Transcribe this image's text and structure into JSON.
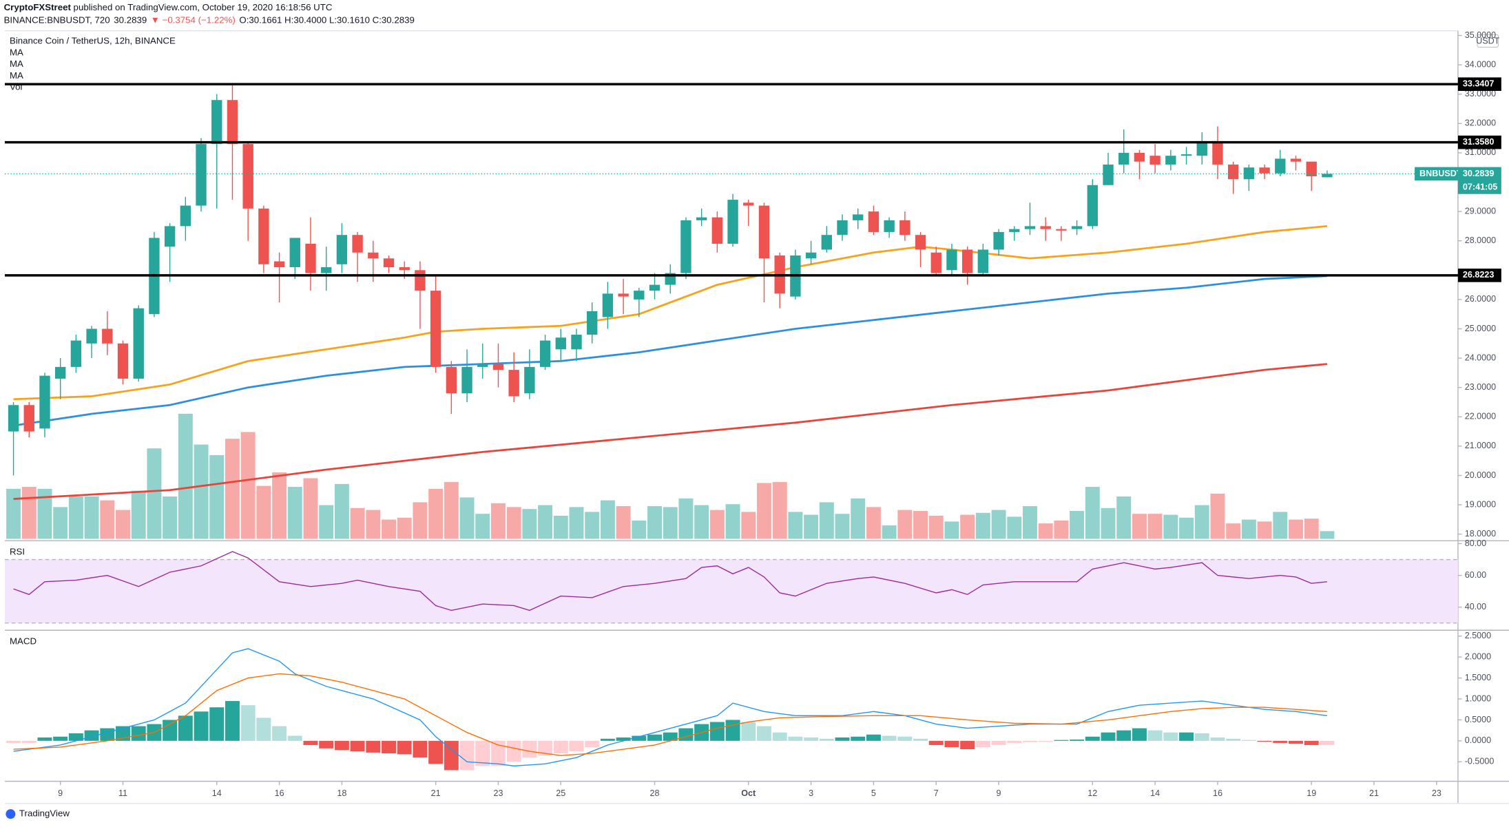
{
  "header": {
    "publisher": "CryptoFXStreet",
    "published": " published on TradingView.com, October 19, 2020 16:18:56 UTC",
    "symbol": "BINANCE:BNBUSDT, 720",
    "price": "30.2839",
    "change": "▼ −0.3754 (−1.22%)",
    "ohlc": "O:30.1661 H:30.4000 L:30.1610 C:30.2839"
  },
  "footer": "TradingView",
  "chart_data": [
    {
      "type": "candlestick",
      "title": "Binance Coin / TetherUS, 12h, BINANCE",
      "indicators": [
        "MA",
        "MA",
        "MA",
        "Vol"
      ],
      "currency": "USDT",
      "colors": {
        "up": "#26a69a",
        "down": "#ef5350"
      },
      "open": [
        21.5,
        22.4,
        21.6,
        23.3,
        23.7,
        24.5,
        25.0,
        24.5,
        23.3,
        25.5,
        27.8,
        28.5,
        29.2,
        31.3,
        32.8,
        31.3,
        29.1,
        27.3,
        27.1,
        27.9,
        26.9,
        27.2,
        28.2,
        27.6,
        27.4,
        27.1,
        27.0,
        26.3,
        23.7,
        22.8,
        23.7,
        23.8,
        23.6,
        22.8,
        23.7,
        24.3,
        24.3,
        24.8,
        25.4,
        26.2,
        26.0,
        26.3,
        26.5,
        26.9,
        28.7,
        28.8,
        27.9,
        29.3,
        29.2,
        27.5,
        26.1,
        27.4,
        27.7,
        28.2,
        28.7,
        29.0,
        28.3,
        28.7,
        28.2,
        27.6,
        27.0,
        27.7,
        26.9,
        27.7,
        28.3,
        28.4,
        28.5,
        28.4,
        28.4,
        28.5,
        29.9,
        30.6,
        31.0,
        30.9,
        30.6,
        30.9,
        30.9,
        31.4,
        30.6,
        30.1,
        30.5,
        30.3,
        30.8,
        30.7,
        30.1661
      ],
      "high": [
        22.5,
        22.5,
        23.5,
        24.0,
        24.8,
        25.1,
        25.6,
        24.6,
        25.8,
        28.3,
        28.6,
        29.5,
        31.5,
        33.0,
        33.3,
        31.4,
        29.2,
        27.6,
        28.1,
        28.8,
        27.8,
        28.6,
        28.3,
        28.0,
        27.5,
        27.3,
        27.3,
        26.8,
        23.9,
        24.3,
        24.5,
        24.5,
        24.2,
        24.3,
        24.8,
        25.0,
        25.0,
        25.9,
        26.6,
        26.7,
        26.4,
        26.9,
        27.2,
        28.8,
        29.1,
        29.0,
        29.6,
        29.4,
        29.3,
        27.6,
        27.7,
        28.0,
        28.5,
        28.9,
        29.1,
        29.2,
        28.8,
        29.0,
        28.3,
        27.8,
        27.9,
        27.8,
        27.9,
        28.4,
        28.5,
        29.3,
        28.8,
        28.5,
        28.7,
        30.1,
        31.0,
        31.8,
        31.1,
        31.3,
        31.1,
        31.2,
        31.7,
        31.9,
        30.7,
        30.6,
        30.6,
        31.1,
        30.9,
        30.7,
        30.4
      ],
      "low": [
        20.0,
        21.3,
        21.3,
        22.6,
        23.5,
        24.0,
        24.1,
        23.1,
        23.2,
        25.4,
        26.6,
        28.0,
        29.0,
        29.1,
        29.4,
        28.0,
        26.9,
        25.9,
        26.7,
        26.3,
        26.3,
        26.9,
        26.6,
        26.6,
        26.9,
        26.7,
        25.0,
        23.5,
        22.1,
        22.5,
        23.3,
        23.0,
        22.5,
        22.6,
        23.6,
        23.9,
        23.9,
        24.5,
        25.0,
        25.5,
        25.4,
        26.0,
        26.2,
        26.7,
        28.5,
        27.6,
        27.8,
        28.5,
        25.9,
        25.7,
        26.0,
        27.2,
        27.6,
        28.0,
        28.4,
        28.2,
        28.1,
        28.0,
        27.1,
        26.8,
        26.8,
        26.5,
        26.8,
        27.5,
        28.0,
        28.2,
        28.0,
        28.0,
        28.2,
        28.4,
        29.9,
        30.3,
        30.1,
        30.3,
        30.4,
        30.6,
        30.6,
        30.1,
        29.6,
        29.7,
        30.1,
        30.2,
        30.4,
        29.7,
        30.161
      ],
      "close": [
        22.4,
        21.5,
        23.4,
        23.7,
        24.6,
        25.0,
        24.5,
        23.3,
        25.7,
        28.1,
        28.5,
        29.2,
        31.3,
        32.8,
        31.3,
        29.1,
        27.2,
        27.1,
        28.1,
        26.9,
        27.1,
        28.2,
        27.6,
        27.4,
        27.1,
        27.0,
        26.3,
        23.7,
        22.8,
        23.7,
        23.8,
        23.6,
        22.7,
        23.7,
        24.6,
        24.7,
        24.8,
        25.6,
        26.2,
        26.1,
        26.3,
        26.5,
        26.9,
        28.7,
        28.8,
        27.9,
        29.4,
        29.2,
        27.4,
        26.2,
        27.5,
        27.6,
        28.2,
        28.7,
        28.9,
        28.3,
        28.7,
        28.2,
        27.7,
        26.9,
        27.7,
        26.9,
        27.7,
        28.3,
        28.4,
        28.5,
        28.4,
        28.35,
        28.5,
        29.9,
        30.6,
        31.0,
        30.7,
        30.6,
        30.9,
        30.95,
        31.4,
        30.6,
        30.1,
        30.5,
        30.3,
        30.8,
        30.7,
        30.2,
        30.2839
      ],
      "volume": [
        52,
        54,
        52,
        33,
        44,
        44,
        40,
        30,
        50,
        94,
        44,
        130,
        98,
        87,
        104,
        111,
        55,
        69,
        54,
        63,
        35,
        57,
        32,
        30,
        20,
        22,
        38,
        52,
        59,
        43,
        26,
        37,
        33,
        31,
        35,
        24,
        33,
        28,
        40,
        34,
        19,
        34,
        33,
        42,
        35,
        30,
        36,
        28,
        58,
        59,
        28,
        25,
        38,
        26,
        42,
        33,
        14,
        30,
        29,
        24,
        18,
        25,
        27,
        30,
        23,
        34,
        16,
        19,
        29,
        54,
        32,
        44,
        26,
        26,
        25,
        22,
        35,
        47,
        16,
        20,
        18,
        28,
        20,
        21,
        8
      ],
      "moving_averages": [
        {
          "color": "#f7a21b",
          "x": [
            0,
            5,
            10,
            15,
            20,
            25,
            27,
            30,
            35,
            40,
            45,
            50,
            55,
            58,
            60,
            65,
            70,
            75,
            80,
            84
          ],
          "values": [
            22.6,
            22.7,
            23.1,
            23.9,
            24.3,
            24.7,
            24.9,
            25.0,
            25.1,
            25.5,
            26.5,
            27.1,
            27.6,
            27.8,
            27.7,
            27.4,
            27.6,
            27.9,
            28.3,
            28.5
          ]
        },
        {
          "color": "#2d8fe0",
          "x": [
            0,
            5,
            10,
            15,
            20,
            25,
            30,
            35,
            40,
            45,
            50,
            55,
            60,
            65,
            70,
            75,
            80,
            84
          ],
          "values": [
            21.7,
            22.1,
            22.4,
            23.0,
            23.4,
            23.7,
            23.8,
            23.9,
            24.2,
            24.6,
            25.0,
            25.3,
            25.6,
            25.9,
            26.2,
            26.4,
            26.7,
            26.8
          ]
        },
        {
          "color": "#e8443a",
          "x": [
            0,
            10,
            20,
            30,
            40,
            50,
            60,
            70,
            80,
            84
          ],
          "values": [
            19.2,
            19.5,
            20.2,
            20.8,
            21.3,
            21.8,
            22.4,
            22.9,
            23.6,
            23.8
          ]
        }
      ],
      "levels": [
        33.3407,
        {
          "value": 31.358,
          "label": "31.3580"
        },
        26.8223
      ],
      "last_price": 30.2839,
      "last_price_name": "BNBUSDT",
      "countdown": "07:41:05",
      "ylim": [
        17.84,
        35.16
      ],
      "yticks": [
        {
          "value": 35,
          "label": "35.0000"
        },
        {
          "value": 34,
          "label": "34.0000"
        },
        {
          "value": 33,
          "label": "33.0000"
        },
        {
          "value": 32,
          "label": "32.0000"
        },
        {
          "value": 31,
          "label": "31.0000"
        },
        {
          "value": 29,
          "label": "29.0000"
        },
        {
          "value": 28,
          "label": "28.0000"
        },
        {
          "value": 26,
          "label": "26.0000"
        },
        {
          "value": 25,
          "label": "25.0000"
        },
        {
          "value": 24,
          "label": "24.0000"
        },
        {
          "value": 23,
          "label": "23.0000"
        },
        {
          "value": 22,
          "label": "22.0000"
        },
        {
          "value": 21,
          "label": "21.0000"
        },
        {
          "value": 20,
          "label": "20.0000"
        },
        {
          "value": 19,
          "label": "19.0000"
        },
        {
          "value": 18,
          "label": "18.0000"
        }
      ],
      "xticks": [
        {
          "value": 3,
          "label": "9"
        },
        {
          "value": 7,
          "label": "11"
        },
        {
          "value": 13,
          "label": "14"
        },
        {
          "value": 17,
          "label": "16"
        },
        {
          "value": 21,
          "label": "18"
        },
        {
          "value": 27,
          "label": "21"
        },
        {
          "value": 31,
          "label": "23"
        },
        {
          "value": 35,
          "label": "25"
        },
        {
          "value": 41,
          "label": "28"
        },
        {
          "value": 47,
          "label": "Oct"
        },
        {
          "value": 51,
          "label": "3"
        },
        {
          "value": 55,
          "label": "5"
        },
        {
          "value": 59,
          "label": "7"
        },
        {
          "value": 63,
          "label": "9"
        },
        {
          "value": 69,
          "label": "12"
        },
        {
          "value": 73,
          "label": "14"
        },
        {
          "value": 77,
          "label": "16"
        },
        {
          "value": 83,
          "label": "19"
        },
        {
          "value": 87,
          "label": "21"
        },
        {
          "value": 91,
          "label": "23"
        }
      ]
    },
    {
      "type": "line",
      "title": "RSI",
      "color": "#9b2a9b",
      "band": [
        30,
        70
      ],
      "band_color": "#f3e5fb",
      "x": [
        0,
        1,
        2,
        4,
        6,
        8,
        10,
        12,
        14,
        15,
        17,
        19,
        21,
        22,
        24,
        26,
        27,
        28,
        30,
        32,
        33,
        35,
        37,
        39,
        41,
        43,
        44,
        45,
        46,
        47,
        48,
        49,
        50,
        52,
        54,
        55,
        57,
        59,
        60,
        61,
        62,
        64,
        66,
        68,
        69,
        71,
        73,
        74,
        76,
        77,
        79,
        81,
        82,
        83,
        84
      ],
      "values": [
        51.5,
        48,
        56,
        57,
        60,
        53,
        62,
        66,
        75,
        71,
        56,
        53,
        55,
        57,
        53,
        50,
        41,
        38,
        42,
        41,
        38,
        47,
        46,
        53,
        55,
        58,
        65,
        66,
        61,
        65,
        59,
        49,
        47,
        55,
        58,
        59,
        55,
        49,
        51,
        48,
        54,
        56,
        56,
        56,
        64,
        68,
        64,
        65,
        68,
        60,
        58,
        60,
        59,
        55,
        56
      ],
      "ylim": [
        26.7,
        81.2
      ],
      "yticks": [
        {
          "value": 80,
          "label": "80.00"
        },
        {
          "value": 60,
          "label": "60.00"
        },
        {
          "value": 40,
          "label": "40.00"
        }
      ]
    },
    {
      "type": "macd",
      "title": "MACD",
      "histogram_colors": [
        "#26a69a",
        "#b2dfdb",
        "#ffcdd2",
        "#ef5350"
      ],
      "histogram": [
        -0.05,
        -0.05,
        0.08,
        0.1,
        0.18,
        0.25,
        0.3,
        0.35,
        0.35,
        0.4,
        0.5,
        0.6,
        0.7,
        0.8,
        0.95,
        0.85,
        0.55,
        0.35,
        0.12,
        -0.1,
        -0.18,
        -0.22,
        -0.25,
        -0.28,
        -0.3,
        -0.32,
        -0.4,
        -0.55,
        -0.7,
        -0.7,
        -0.6,
        -0.6,
        -0.5,
        -0.4,
        -0.35,
        -0.3,
        -0.25,
        -0.15,
        0.05,
        0.08,
        0.12,
        0.15,
        0.2,
        0.3,
        0.4,
        0.45,
        0.5,
        0.45,
        0.35,
        0.2,
        0.1,
        0.08,
        0.05,
        0.08,
        0.1,
        0.15,
        0.12,
        0.1,
        0.05,
        -0.1,
        -0.15,
        -0.2,
        -0.15,
        -0.1,
        -0.05,
        -0.03,
        -0.02,
        0.02,
        0.03,
        0.1,
        0.2,
        0.25,
        0.3,
        0.25,
        0.2,
        0.2,
        0.18,
        0.08,
        0.05,
        0.02,
        -0.02,
        -0.05,
        -0.07,
        -0.1,
        -0.1
      ],
      "series": [
        {
          "color": "#2196f3",
          "x": [
            0,
            3,
            6,
            9,
            11,
            13,
            14,
            15,
            17,
            18,
            20,
            23,
            26,
            27,
            29,
            31,
            32,
            34,
            36,
            38,
            40,
            43,
            45,
            46,
            48,
            50,
            53,
            55,
            57,
            59,
            61,
            63,
            65,
            68,
            70,
            72,
            74,
            76,
            78,
            80,
            82,
            84
          ],
          "values": [
            -0.25,
            -0.1,
            0.2,
            0.5,
            0.9,
            1.7,
            2.1,
            2.2,
            1.9,
            1.6,
            1.3,
            1.0,
            0.5,
            0.1,
            -0.5,
            -0.55,
            -0.6,
            -0.55,
            -0.4,
            -0.1,
            0.1,
            0.4,
            0.6,
            0.9,
            0.7,
            0.6,
            0.6,
            0.7,
            0.6,
            0.4,
            0.3,
            0.35,
            0.4,
            0.4,
            0.7,
            0.85,
            0.9,
            0.95,
            0.85,
            0.75,
            0.7,
            0.6
          ]
        },
        {
          "color": "#ff6d00",
          "x": [
            0,
            3,
            6,
            9,
            11,
            13,
            15,
            17,
            19,
            21,
            23,
            25,
            27,
            29,
            31,
            33,
            35,
            37,
            39,
            41,
            43,
            45,
            47,
            49,
            52,
            55,
            58,
            61,
            64,
            67,
            70,
            72,
            74,
            76,
            78,
            80,
            82,
            84
          ],
          "values": [
            -0.2,
            -0.15,
            0.0,
            0.2,
            0.6,
            1.2,
            1.5,
            1.6,
            1.55,
            1.4,
            1.2,
            1.0,
            0.6,
            0.2,
            -0.1,
            -0.25,
            -0.35,
            -0.3,
            -0.2,
            -0.1,
            0.1,
            0.3,
            0.45,
            0.55,
            0.58,
            0.6,
            0.6,
            0.5,
            0.42,
            0.4,
            0.5,
            0.6,
            0.7,
            0.77,
            0.8,
            0.8,
            0.75,
            0.7
          ]
        }
      ],
      "ylim": [
        -0.92,
        2.64
      ],
      "yticks": [
        {
          "value": 2.5,
          "label": "2.5000"
        },
        {
          "value": 2,
          "label": "2.0000"
        },
        {
          "value": 1.5,
          "label": "1.5000"
        },
        {
          "value": 1,
          "label": "1.0000"
        },
        {
          "value": 0.5,
          "label": "0.5000"
        },
        {
          "value": 0,
          "label": "0.0000"
        },
        {
          "value": -0.5,
          "label": "-0.5000"
        }
      ]
    }
  ]
}
